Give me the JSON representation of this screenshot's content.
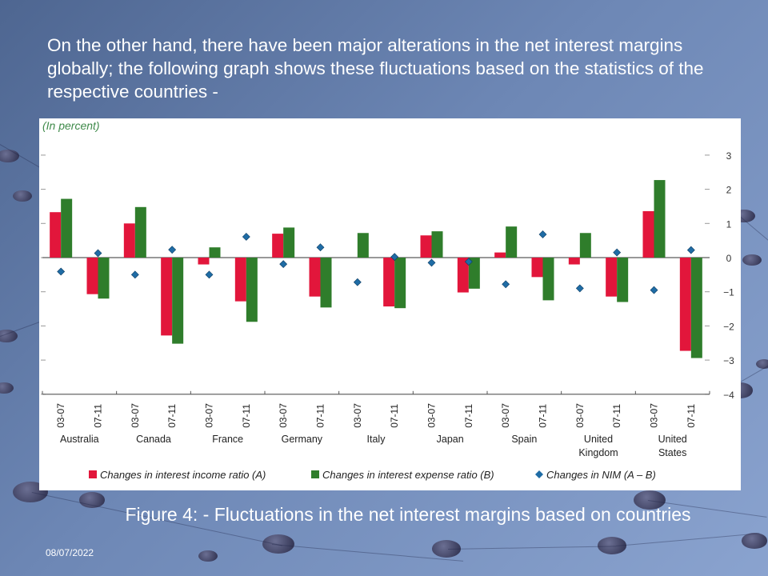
{
  "slide": {
    "intro_text": "On the other hand, there have been major alterations in the net interest margins globally; the following graph shows these fluctuations based on the statistics of the respective countries -",
    "caption": "Figure 4: - Fluctuations in the net interest margins based on countries",
    "date": "08/07/2022"
  },
  "colors": {
    "income": "#e2163b",
    "expense": "#2f7d2b",
    "nim": "#1f6ca5",
    "unit_label": "#3f8a4a"
  },
  "chart_data": {
    "type": "bar",
    "unit_label": "(In percent)",
    "countries": [
      "Australia",
      "Canada",
      "France",
      "Germany",
      "Italy",
      "Japan",
      "Spain",
      "United Kingdom",
      "United States"
    ],
    "country_labels": [
      [
        "Australia"
      ],
      [
        "Canada"
      ],
      [
        "France"
      ],
      [
        "Germany"
      ],
      [
        "Italy"
      ],
      [
        "Japan"
      ],
      [
        "Spain"
      ],
      [
        "United",
        "Kingdom"
      ],
      [
        "United",
        "States"
      ]
    ],
    "periods": [
      "03-07",
      "07-11"
    ],
    "ylim": [
      -4,
      3
    ],
    "yticks": [
      3,
      2,
      1,
      0,
      -1,
      -2,
      -3,
      -4
    ],
    "ytick_labels": [
      "3",
      "2",
      "1",
      "0",
      "−1",
      "−2",
      "−3",
      "−4"
    ],
    "series": [
      {
        "name": "Changes in interest income ratio (A)",
        "type": "bar",
        "values": [
          1.33,
          -1.07,
          1.0,
          -2.28,
          -0.2,
          -1.28,
          0.7,
          -1.14,
          0.0,
          -1.43,
          0.65,
          -1.02,
          0.15,
          -0.57,
          -0.2,
          -1.14,
          1.36,
          -2.73
        ]
      },
      {
        "name": "Changes in interest expense ratio (B)",
        "type": "bar",
        "values": [
          1.72,
          -1.2,
          1.48,
          -2.52,
          0.3,
          -1.88,
          0.88,
          -1.46,
          0.72,
          -1.48,
          0.77,
          -0.91,
          0.91,
          -1.25,
          0.72,
          -1.3,
          2.27,
          -2.94
        ]
      },
      {
        "name": "Changes in NIM (A – B)",
        "type": "scatter",
        "values": [
          -0.41,
          0.13,
          -0.5,
          0.23,
          -0.5,
          0.61,
          -0.19,
          0.3,
          -0.72,
          0.02,
          -0.15,
          -0.12,
          -0.78,
          0.68,
          -0.9,
          0.15,
          -0.95,
          0.22
        ]
      }
    ]
  }
}
